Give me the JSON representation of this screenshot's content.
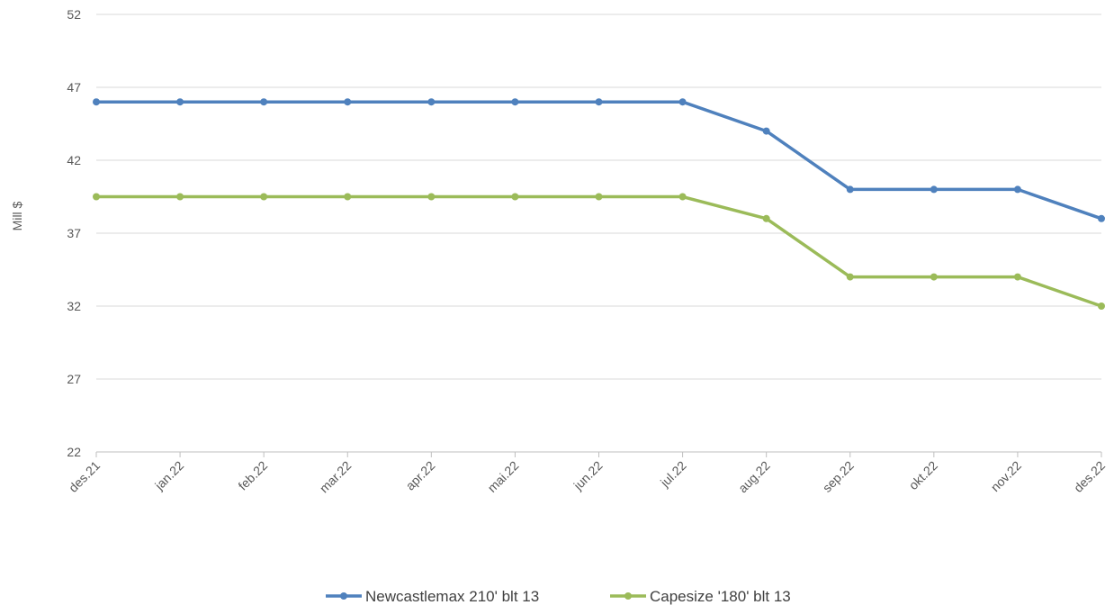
{
  "chart_data": {
    "type": "line",
    "title": "",
    "xlabel": "",
    "ylabel": "Mill $",
    "ylim": [
      22,
      52
    ],
    "yticks": [
      22,
      27,
      32,
      37,
      42,
      47,
      52
    ],
    "grid": "horizontal",
    "legend_position": "bottom",
    "categories": [
      "des.21",
      "jan.22",
      "feb.22",
      "mar.22",
      "apr.22",
      "mai.22",
      "jun.22",
      "jul.22",
      "aug.22",
      "sep.22",
      "okt.22",
      "nov.22",
      "des.22"
    ],
    "series": [
      {
        "name": "Newcastlemax 210' blt 13",
        "color": "#4f81bd",
        "values": [
          46,
          46,
          46,
          46,
          46,
          46,
          46,
          46,
          44,
          40,
          40,
          40,
          38
        ]
      },
      {
        "name": "Capesize '180' blt 13",
        "color": "#9bbb59",
        "values": [
          39.5,
          39.5,
          39.5,
          39.5,
          39.5,
          39.5,
          39.5,
          39.5,
          38,
          34,
          34,
          34,
          32
        ]
      }
    ]
  }
}
